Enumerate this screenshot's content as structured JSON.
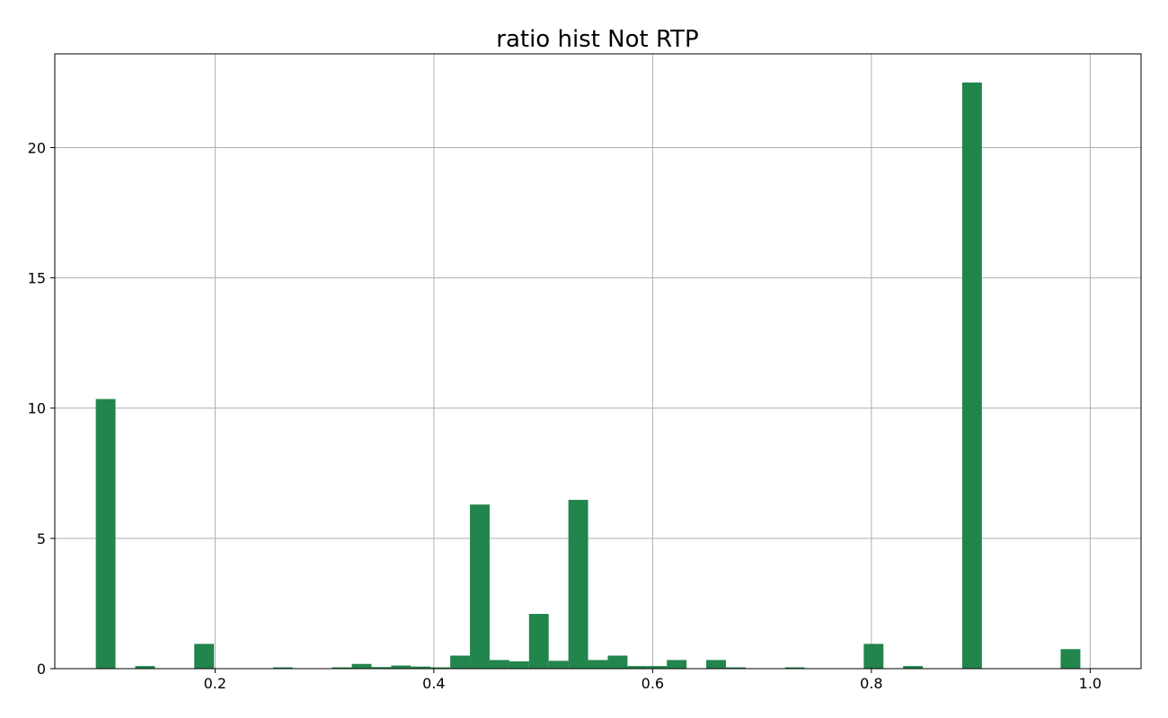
{
  "chart_data": {
    "type": "bar",
    "title": "ratio hist Not RTP",
    "xlabel": "",
    "ylabel": "",
    "xlim": [
      0.0535,
      1.0465
    ],
    "ylim": [
      0,
      23.6
    ],
    "bin_width": 0.018,
    "xticks": [
      0.2,
      0.4,
      0.6,
      0.8,
      1.0
    ],
    "xtick_labels": [
      "0.2",
      "0.4",
      "0.6",
      "0.8",
      "1.0"
    ],
    "yticks": [
      0,
      5,
      10,
      15,
      20
    ],
    "ytick_labels": [
      "0",
      "5",
      "10",
      "15",
      "20"
    ],
    "grid": true,
    "bar_color": "#21854c",
    "bins": [
      {
        "x": 0.1,
        "value": 10.35
      },
      {
        "x": 0.136,
        "value": 0.1
      },
      {
        "x": 0.19,
        "value": 0.95
      },
      {
        "x": 0.262,
        "value": 0.05
      },
      {
        "x": 0.316,
        "value": 0.05
      },
      {
        "x": 0.334,
        "value": 0.18
      },
      {
        "x": 0.352,
        "value": 0.06
      },
      {
        "x": 0.37,
        "value": 0.12
      },
      {
        "x": 0.388,
        "value": 0.08
      },
      {
        "x": 0.406,
        "value": 0.05
      },
      {
        "x": 0.424,
        "value": 0.5
      },
      {
        "x": 0.442,
        "value": 6.3
      },
      {
        "x": 0.46,
        "value": 0.33
      },
      {
        "x": 0.478,
        "value": 0.28
      },
      {
        "x": 0.496,
        "value": 2.1
      },
      {
        "x": 0.514,
        "value": 0.3
      },
      {
        "x": 0.532,
        "value": 6.48
      },
      {
        "x": 0.55,
        "value": 0.33
      },
      {
        "x": 0.568,
        "value": 0.5
      },
      {
        "x": 0.586,
        "value": 0.1
      },
      {
        "x": 0.604,
        "value": 0.1
      },
      {
        "x": 0.622,
        "value": 0.33
      },
      {
        "x": 0.658,
        "value": 0.33
      },
      {
        "x": 0.676,
        "value": 0.05
      },
      {
        "x": 0.73,
        "value": 0.05
      },
      {
        "x": 0.802,
        "value": 0.95
      },
      {
        "x": 0.838,
        "value": 0.1
      },
      {
        "x": 0.892,
        "value": 22.5
      },
      {
        "x": 0.982,
        "value": 0.75
      }
    ]
  }
}
